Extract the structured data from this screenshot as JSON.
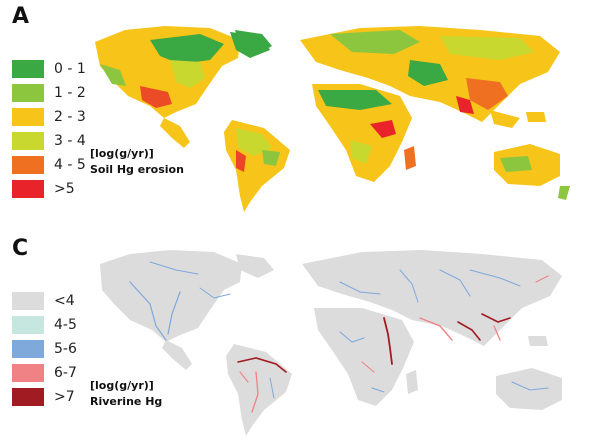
{
  "panel_a": {
    "letter": "A",
    "legend": [
      {
        "label": "0 - 1",
        "color": "#3aa843"
      },
      {
        "label": "1 - 2",
        "color": "#8cc63f"
      },
      {
        "label": "2 - 3",
        "color": "#f7c419"
      },
      {
        "label": "3 - 4",
        "color": "#c9d82e"
      },
      {
        "label": "4 - 5",
        "color": "#f07022"
      },
      {
        "label": ">5",
        "color": "#e8242a"
      }
    ],
    "unit": "[log(g/yr)]",
    "title": "Soil Hg erosion"
  },
  "panel_c": {
    "letter": "C",
    "legend": [
      {
        "label": "<4",
        "color": "#dcdcdc"
      },
      {
        "label": "4-5",
        "color": "#c6e7e0"
      },
      {
        "label": "5-6",
        "color": "#7fa8db"
      },
      {
        "label": "6-7",
        "color": "#f08286"
      },
      {
        "label": ">7",
        "color": "#a11c22"
      }
    ],
    "unit": "[log(g/yr)]",
    "title": "Riverine Hg"
  }
}
